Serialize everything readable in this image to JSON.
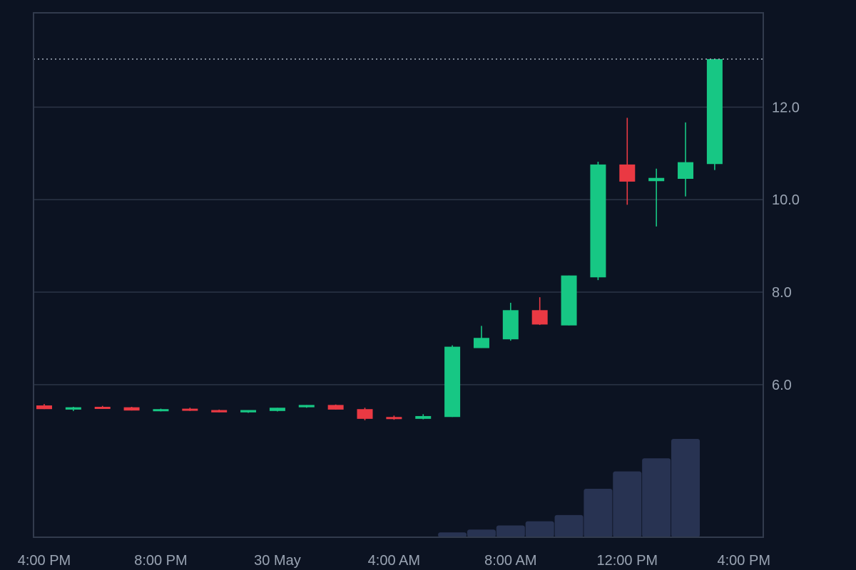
{
  "colors": {
    "background": "#0c1322",
    "grid": "#2b3446",
    "frame": "#323b4d",
    "up": "#17c784",
    "down": "#ea3943",
    "volume": "#283352",
    "text": "#9aa4b3",
    "last_price_line": "#9aa4b3"
  },
  "chart_data": {
    "type": "candlestick",
    "y_axis": {
      "ticks": [
        6.0,
        8.0,
        10.0,
        12.0
      ],
      "tick_labels": [
        "6.0",
        "8.0",
        "10.0",
        "12.0"
      ],
      "range": [
        2.7,
        14.04
      ]
    },
    "x_axis": {
      "tick_labels": [
        "4:00 PM",
        "8:00 PM",
        "30 May",
        "4:00 AM",
        "8:00 AM",
        "12:00 PM",
        "4:00 PM"
      ],
      "tick_times": [
        "2024-05-29T16:00",
        "2024-05-29T20:00",
        "2024-05-30T00:00",
        "2024-05-30T04:00",
        "2024-05-30T08:00",
        "2024-05-30T12:00",
        "2024-05-30T16:00"
      ],
      "range": [
        "2024-05-29T15:38",
        "2024-05-30T16:40"
      ]
    },
    "last_price": 13.04,
    "grid": true,
    "candles": [
      {
        "t": "2024-05-29T16:00",
        "o": 5.55,
        "h": 5.58,
        "l": 5.47,
        "c": 5.47
      },
      {
        "t": "2024-05-29T17:00",
        "o": 5.46,
        "h": 5.52,
        "l": 5.43,
        "c": 5.51
      },
      {
        "t": "2024-05-29T18:00",
        "o": 5.52,
        "h": 5.54,
        "l": 5.49,
        "c": 5.5
      },
      {
        "t": "2024-05-29T19:00",
        "o": 5.51,
        "h": 5.52,
        "l": 5.44,
        "c": 5.44
      },
      {
        "t": "2024-05-29T20:00",
        "o": 5.43,
        "h": 5.48,
        "l": 5.42,
        "c": 5.47
      },
      {
        "t": "2024-05-29T21:00",
        "o": 5.48,
        "h": 5.5,
        "l": 5.43,
        "c": 5.44
      },
      {
        "t": "2024-05-29T22:00",
        "o": 5.45,
        "h": 5.46,
        "l": 5.4,
        "c": 5.4
      },
      {
        "t": "2024-05-29T23:00",
        "o": 5.4,
        "h": 5.45,
        "l": 5.39,
        "c": 5.45
      },
      {
        "t": "2024-05-30T00:00",
        "o": 5.43,
        "h": 5.5,
        "l": 5.42,
        "c": 5.5
      },
      {
        "t": "2024-05-30T01:00",
        "o": 5.51,
        "h": 5.56,
        "l": 5.5,
        "c": 5.56
      },
      {
        "t": "2024-05-30T02:00",
        "o": 5.56,
        "h": 5.57,
        "l": 5.46,
        "c": 5.46
      },
      {
        "t": "2024-05-30T03:00",
        "o": 5.47,
        "h": 5.5,
        "l": 5.23,
        "c": 5.26
      },
      {
        "t": "2024-05-30T04:00",
        "o": 5.3,
        "h": 5.33,
        "l": 5.24,
        "c": 5.27
      },
      {
        "t": "2024-05-30T05:00",
        "o": 5.26,
        "h": 5.36,
        "l": 5.25,
        "c": 5.32
      },
      {
        "t": "2024-05-30T06:00",
        "o": 5.3,
        "h": 6.85,
        "l": 5.3,
        "c": 6.82
      },
      {
        "t": "2024-05-30T07:00",
        "o": 6.79,
        "h": 7.27,
        "l": 6.79,
        "c": 7.01
      },
      {
        "t": "2024-05-30T08:00",
        "o": 6.98,
        "h": 7.77,
        "l": 6.95,
        "c": 7.61
      },
      {
        "t": "2024-05-30T09:00",
        "o": 7.61,
        "h": 7.89,
        "l": 7.29,
        "c": 7.3
      },
      {
        "t": "2024-05-30T10:00",
        "o": 7.28,
        "h": 8.36,
        "l": 7.28,
        "c": 8.36
      },
      {
        "t": "2024-05-30T11:00",
        "o": 8.32,
        "h": 10.82,
        "l": 8.26,
        "c": 10.76
      },
      {
        "t": "2024-05-30T12:00",
        "o": 10.76,
        "h": 11.77,
        "l": 9.89,
        "c": 10.39
      },
      {
        "t": "2024-05-30T13:00",
        "o": 10.4,
        "h": 10.67,
        "l": 9.42,
        "c": 10.47
      },
      {
        "t": "2024-05-30T14:00",
        "o": 10.45,
        "h": 11.67,
        "l": 10.07,
        "c": 10.81
      },
      {
        "t": "2024-05-30T15:00",
        "o": 10.77,
        "h": 13.04,
        "l": 10.64,
        "c": 13.04
      }
    ],
    "volume": [
      {
        "t": "2024-05-30T06:00",
        "v": 7
      },
      {
        "t": "2024-05-30T07:00",
        "v": 11
      },
      {
        "t": "2024-05-30T08:00",
        "v": 17
      },
      {
        "t": "2024-05-30T09:00",
        "v": 23
      },
      {
        "t": "2024-05-30T10:00",
        "v": 32
      },
      {
        "t": "2024-05-30T11:00",
        "v": 70
      },
      {
        "t": "2024-05-30T12:00",
        "v": 95
      },
      {
        "t": "2024-05-30T13:00",
        "v": 114
      },
      {
        "t": "2024-05-30T14:00",
        "v": 142
      }
    ]
  }
}
